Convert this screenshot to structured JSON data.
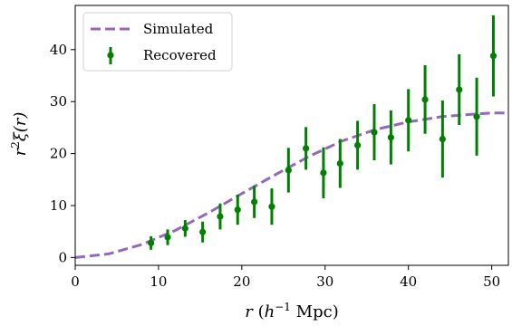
{
  "chart_data": {
    "type": "scatter",
    "xlabel_parts": {
      "var": "r",
      "open": " (",
      "h": "h",
      "exp": "−1",
      "unit": " Mpc)"
    },
    "ylabel_parts": {
      "base": "r",
      "exp": "2",
      "func": "ξ(r)"
    },
    "xlim": [
      0,
      52
    ],
    "ylim": [
      -1.5,
      48.5
    ],
    "xticks": [
      0,
      10,
      20,
      30,
      40,
      50
    ],
    "yticks": [
      0,
      10,
      20,
      30,
      40
    ],
    "legend_position": "top-left",
    "series": [
      {
        "name": "Simulated",
        "style": "dashed-line",
        "color": "#9467bd",
        "x": [
          0,
          4,
          8,
          12,
          16,
          20,
          24,
          28,
          32,
          36,
          40,
          44,
          48,
          50,
          52
        ],
        "y": [
          0,
          0.7,
          2.5,
          5.2,
          8.6,
          12.3,
          15.9,
          19.4,
          22.4,
          24.6,
          26.1,
          27.1,
          27.6,
          27.8,
          27.8
        ]
      },
      {
        "name": "Recovered",
        "style": "points-with-errorbars",
        "color": "#008000",
        "x": [
          9.1,
          11.1,
          13.2,
          15.3,
          17.4,
          19.5,
          21.5,
          23.6,
          25.6,
          27.7,
          29.8,
          31.8,
          33.9,
          35.9,
          37.9,
          40.0,
          42.0,
          44.1,
          46.1,
          48.2,
          50.2
        ],
        "y": [
          2.8,
          3.9,
          5.6,
          4.9,
          7.9,
          9.2,
          10.7,
          9.8,
          16.8,
          21.0,
          16.3,
          18.1,
          21.6,
          24.1,
          23.1,
          26.4,
          30.4,
          22.8,
          32.3,
          27.1,
          38.8
        ],
        "yerr": [
          1.3,
          1.5,
          1.6,
          2.0,
          2.5,
          2.9,
          3.1,
          3.5,
          4.3,
          4.1,
          4.9,
          4.7,
          4.7,
          5.4,
          5.2,
          6.0,
          6.6,
          7.4,
          6.8,
          7.5,
          7.8
        ]
      }
    ]
  }
}
